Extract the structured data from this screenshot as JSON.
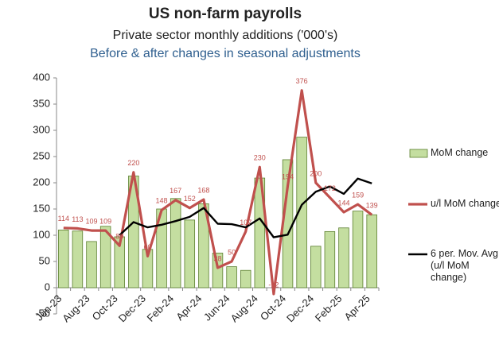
{
  "chart_data": {
    "type": "bar",
    "title": "US non-farm payrolls",
    "subtitle": "Private sector monthly additions ('000's)",
    "note": "Before & after changes in seasonal adjustments",
    "categories": [
      "Jun-23",
      null,
      "Aug-23",
      null,
      "Oct-23",
      null,
      "Dec-23",
      null,
      "Feb-24",
      null,
      "Apr-24",
      null,
      "Jun-24",
      null,
      "Aug-24",
      null,
      "Oct-24",
      null,
      "Dec-24",
      null,
      "Feb-25",
      null,
      "Apr-25"
    ],
    "series": [
      {
        "name": "MoM change",
        "type": "bar",
        "color": "#c4dea0",
        "values": [
          110,
          108,
          88,
          117,
          97,
          213,
          73,
          150,
          170,
          129,
          160,
          66,
          40,
          33,
          209,
          null,
          244,
          287,
          79,
          107,
          114,
          146,
          139
        ]
      },
      {
        "name": "u/l MoM change",
        "type": "line",
        "color": "#c0504d",
        "labels": true,
        "values": [
          114,
          113,
          109,
          109,
          80,
          220,
          60,
          148,
          167,
          152,
          168,
          38,
          50,
          107,
          230,
          -12,
          194,
          376,
          200,
          172,
          144,
          159,
          139
        ]
      },
      {
        "name": "6 per. Mov. Avg. (u/l MoM change)",
        "type": "line",
        "color": "#000000",
        "values": [
          null,
          null,
          null,
          null,
          100,
          125,
          115,
          120,
          127,
          135,
          152,
          122,
          121,
          115,
          132,
          96,
          101,
          158,
          183,
          193,
          179,
          208,
          199
        ]
      }
    ],
    "ylim": [
      -50,
      400
    ],
    "yticks": [
      -50,
      0,
      50,
      100,
      150,
      200,
      250,
      300,
      350,
      400
    ],
    "legend": "right"
  }
}
